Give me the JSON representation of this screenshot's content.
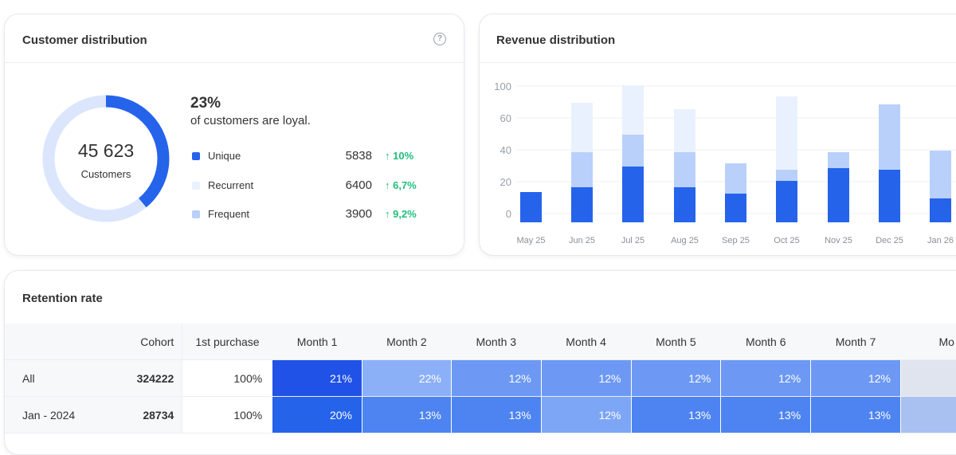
{
  "customer_card": {
    "title": "Customer distribution",
    "help_icon": "question-circle-icon",
    "total": "45 623",
    "total_label": "Customers",
    "loyal_pct": "23%",
    "loyal_text": "of customers are loyal.",
    "segments": [
      {
        "label": "Unique",
        "count": "5838",
        "trend": "↑ 10%",
        "color": "#2563eb"
      },
      {
        "label": "Recurrent",
        "count": "6400",
        "trend": "↑ 6,7%",
        "color": "#eaf1fe"
      },
      {
        "label": "Frequent",
        "count": "3900",
        "trend": "↑ 9,2%",
        "color": "#b9d0fb"
      }
    ],
    "donut_share": {
      "unique": 0.39,
      "recurrent": 0.61
    }
  },
  "revenue_card": {
    "title": "Revenue distribution"
  },
  "chart_data": {
    "type": "bar",
    "stacked": true,
    "categories": [
      "May 25",
      "Jun 25",
      "Jul 25",
      "Aug 25",
      "Sep 25",
      "Oct 25",
      "Nov 25",
      "Dec 25",
      "Jan 26"
    ],
    "y_ticks": [
      "100",
      "60",
      "40",
      "20",
      "0"
    ],
    "series": [
      {
        "values": [
          19,
          22,
          35,
          22,
          18,
          26,
          34,
          33,
          15
        ],
        "color": "#2563eb"
      },
      {
        "values": [
          0,
          22,
          20,
          22,
          19,
          7,
          10,
          41,
          30
        ],
        "color": "#b9d0fb"
      },
      {
        "values": [
          0,
          31,
          31,
          27,
          0,
          46,
          0,
          0,
          0
        ],
        "color": "#eaf1fe"
      }
    ],
    "grid": true,
    "legend": "none"
  },
  "retention": {
    "title": "Retention rate",
    "headers": [
      "",
      "Cohort",
      "1st purchase",
      "Month 1",
      "Month 2",
      "Month 3",
      "Month 4",
      "Month 5",
      "Month 6",
      "Month 7",
      "Mo"
    ],
    "rows": [
      {
        "name": "All",
        "cohort": "324222",
        "first": "100%",
        "cells": [
          "21%",
          "22%",
          "12%",
          "12%",
          "12%",
          "12%",
          "12%",
          ""
        ],
        "colors": [
          "#2152e8",
          "#8cb0f7",
          "#6d99f4",
          "#6d99f4",
          "#6d99f4",
          "#6d99f4",
          "#6d99f4",
          "#dfe4ee"
        ]
      },
      {
        "name": "Jan - 2024",
        "cohort": "28734",
        "first": "100%",
        "cells": [
          "20%",
          "13%",
          "13%",
          "12%",
          "13%",
          "13%",
          "13%",
          ""
        ],
        "colors": [
          "#2563eb",
          "#4d84f1",
          "#4d84f1",
          "#7ea6f6",
          "#4d84f1",
          "#4d84f1",
          "#4d84f1",
          "#a9c1f1"
        ]
      }
    ]
  }
}
